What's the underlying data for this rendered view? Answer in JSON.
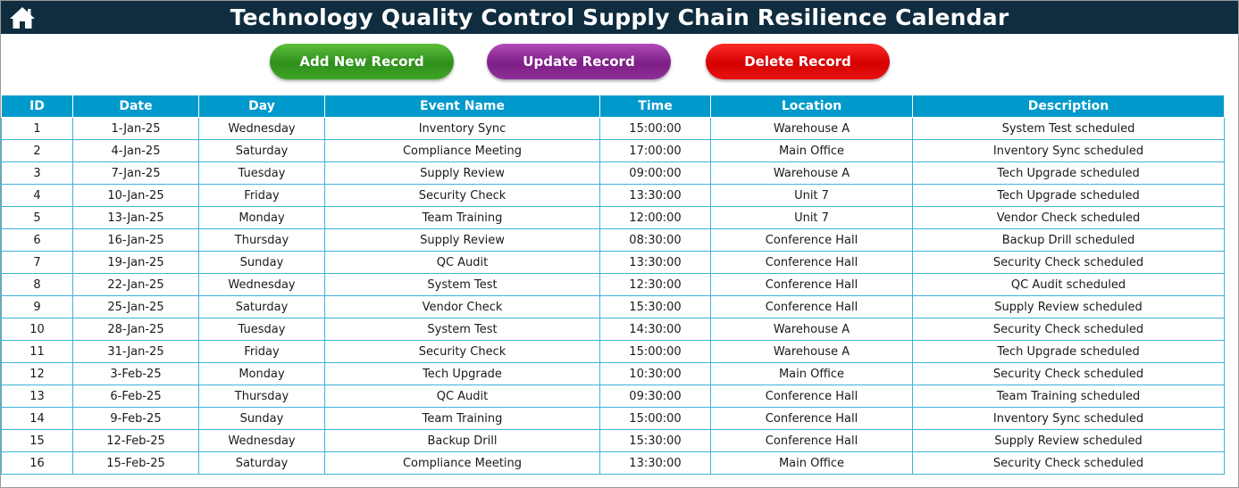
{
  "header": {
    "title": "Technology Quality Control Supply Chain Resilience Calendar",
    "home_icon": "home-icon"
  },
  "toolbar": {
    "add_label": "Add New Record",
    "update_label": "Update Record",
    "delete_label": "Delete Record"
  },
  "colors": {
    "title_bar": "#0f2d3e",
    "header_row": "#0099cc",
    "grid_border": "#3cb4dc",
    "add_button": "#3ea526",
    "update_button": "#8e2f98",
    "delete_button": "#e81212"
  },
  "table": {
    "columns": [
      "ID",
      "Date",
      "Day",
      "Event Name",
      "Time",
      "Location",
      "Description"
    ],
    "rows": [
      [
        "1",
        "1-Jan-25",
        "Wednesday",
        "Inventory Sync",
        "15:00:00",
        "Warehouse A",
        "System Test scheduled"
      ],
      [
        "2",
        "4-Jan-25",
        "Saturday",
        "Compliance Meeting",
        "17:00:00",
        "Main Office",
        "Inventory Sync scheduled"
      ],
      [
        "3",
        "7-Jan-25",
        "Tuesday",
        "Supply Review",
        "09:00:00",
        "Warehouse A",
        "Tech Upgrade scheduled"
      ],
      [
        "4",
        "10-Jan-25",
        "Friday",
        "Security Check",
        "13:30:00",
        "Unit 7",
        "Tech Upgrade scheduled"
      ],
      [
        "5",
        "13-Jan-25",
        "Monday",
        "Team Training",
        "12:00:00",
        "Unit 7",
        "Vendor Check scheduled"
      ],
      [
        "6",
        "16-Jan-25",
        "Thursday",
        "Supply Review",
        "08:30:00",
        "Conference Hall",
        "Backup Drill scheduled"
      ],
      [
        "7",
        "19-Jan-25",
        "Sunday",
        "QC Audit",
        "13:30:00",
        "Conference Hall",
        "Security Check scheduled"
      ],
      [
        "8",
        "22-Jan-25",
        "Wednesday",
        "System Test",
        "12:30:00",
        "Conference Hall",
        "QC Audit scheduled"
      ],
      [
        "9",
        "25-Jan-25",
        "Saturday",
        "Vendor Check",
        "15:30:00",
        "Conference Hall",
        "Supply Review scheduled"
      ],
      [
        "10",
        "28-Jan-25",
        "Tuesday",
        "System Test",
        "14:30:00",
        "Warehouse A",
        "Security Check scheduled"
      ],
      [
        "11",
        "31-Jan-25",
        "Friday",
        "Security Check",
        "15:00:00",
        "Warehouse A",
        "Tech Upgrade scheduled"
      ],
      [
        "12",
        "3-Feb-25",
        "Monday",
        "Tech Upgrade",
        "10:30:00",
        "Main Office",
        "Security Check scheduled"
      ],
      [
        "13",
        "6-Feb-25",
        "Thursday",
        "QC Audit",
        "09:30:00",
        "Conference Hall",
        "Team Training scheduled"
      ],
      [
        "14",
        "9-Feb-25",
        "Sunday",
        "Team Training",
        "15:00:00",
        "Conference Hall",
        "Inventory Sync scheduled"
      ],
      [
        "15",
        "12-Feb-25",
        "Wednesday",
        "Backup Drill",
        "15:30:00",
        "Conference Hall",
        "Supply Review scheduled"
      ],
      [
        "16",
        "15-Feb-25",
        "Saturday",
        "Compliance Meeting",
        "13:30:00",
        "Main Office",
        "Security Check scheduled"
      ]
    ]
  }
}
